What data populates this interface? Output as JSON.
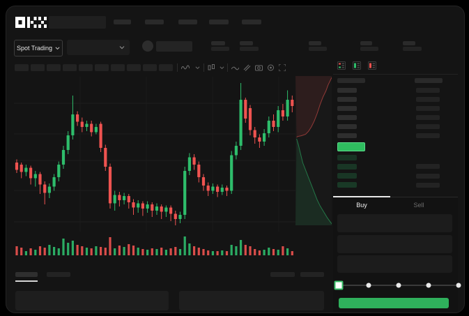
{
  "brand": {
    "logo_text": "OKX"
  },
  "market_bar": {
    "pair_selector_label": "Spot Trading"
  },
  "trade_form": {
    "buy_tab": "Buy",
    "sell_tab": "Sell",
    "slider_stops": [
      0,
      25,
      50,
      75,
      100
    ],
    "slider_value": 0
  },
  "colors": {
    "up": "#2ebd6b",
    "down": "#ef5350",
    "button_green": "#2fb05c",
    "price_green": "#2fbd5f",
    "grid": "#1e1e1e",
    "grid_vertical": "#1a1a1a"
  },
  "chart_data": {
    "type": "candlestick",
    "note_units": "relative price units, ohlc = [open, high, low, close]",
    "candles": [
      [
        126,
        129,
        116,
        119
      ],
      [
        124,
        126,
        111,
        117
      ],
      [
        117,
        124,
        113,
        121
      ],
      [
        121,
        123,
        105,
        111
      ],
      [
        111,
        118,
        103,
        115
      ],
      [
        115,
        117,
        96,
        105
      ],
      [
        105,
        108,
        86,
        97
      ],
      [
        97,
        106,
        92,
        103
      ],
      [
        103,
        115,
        99,
        112
      ],
      [
        112,
        127,
        108,
        124
      ],
      [
        124,
        142,
        120,
        138
      ],
      [
        138,
        156,
        134,
        152
      ],
      [
        152,
        190,
        148,
        172
      ],
      [
        172,
        175,
        161,
        165
      ],
      [
        165,
        169,
        155,
        160
      ],
      [
        160,
        166,
        156,
        163
      ],
      [
        163,
        166,
        151,
        155
      ],
      [
        155,
        163,
        153,
        160
      ],
      [
        163,
        165,
        136,
        140
      ],
      [
        140,
        143,
        118,
        122
      ],
      [
        122,
        125,
        82,
        87
      ],
      [
        87,
        99,
        80,
        95
      ],
      [
        95,
        98,
        84,
        90
      ],
      [
        90,
        97,
        86,
        94
      ],
      [
        94,
        96,
        82,
        88
      ],
      [
        88,
        91,
        76,
        83
      ],
      [
        83,
        90,
        78,
        87
      ],
      [
        87,
        89,
        75,
        82
      ],
      [
        82,
        89,
        78,
        86
      ],
      [
        86,
        88,
        74,
        80
      ],
      [
        80,
        87,
        76,
        84
      ],
      [
        84,
        86,
        72,
        79
      ],
      [
        79,
        85,
        74,
        83
      ],
      [
        83,
        85,
        70,
        77
      ],
      [
        77,
        80,
        66,
        72
      ],
      [
        72,
        79,
        68,
        76
      ],
      [
        76,
        122,
        72,
        118
      ],
      [
        118,
        135,
        114,
        131
      ],
      [
        131,
        134,
        119,
        124
      ],
      [
        124,
        127,
        107,
        112
      ],
      [
        112,
        115,
        99,
        104
      ],
      [
        104,
        107,
        94,
        99
      ],
      [
        99,
        106,
        96,
        103
      ],
      [
        103,
        105,
        93,
        98
      ],
      [
        98,
        105,
        95,
        102
      ],
      [
        102,
        104,
        94,
        99
      ],
      [
        99,
        137,
        96,
        133
      ],
      [
        133,
        146,
        129,
        142
      ],
      [
        142,
        202,
        138,
        186
      ],
      [
        186,
        188,
        164,
        168
      ],
      [
        178,
        181,
        152,
        157
      ],
      [
        157,
        160,
        144,
        150
      ],
      [
        150,
        153,
        140,
        146
      ],
      [
        146,
        158,
        142,
        154
      ],
      [
        154,
        170,
        150,
        166
      ],
      [
        166,
        172,
        156,
        160
      ],
      [
        160,
        180,
        155,
        176
      ],
      [
        176,
        182,
        166,
        170
      ],
      [
        170,
        195,
        166,
        186
      ],
      [
        186,
        190,
        174,
        180
      ]
    ],
    "volumes": [
      13,
      11,
      6,
      10,
      8,
      13,
      11,
      15,
      12,
      10,
      24,
      18,
      21,
      15,
      13,
      11,
      10,
      13,
      12,
      11,
      26,
      10,
      14,
      12,
      16,
      14,
      11,
      9,
      8,
      10,
      9,
      11,
      8,
      10,
      12,
      9,
      27,
      17,
      13,
      11,
      9,
      7,
      6,
      6,
      7,
      6,
      15,
      13,
      22,
      15,
      13,
      9,
      7,
      8,
      11,
      9,
      8,
      13,
      10,
      6
    ],
    "price_range": [
      60,
      208
    ],
    "grid_h": [
      38,
      82,
      120,
      163,
      208
    ],
    "grid_v": [
      95,
      190,
      285,
      380
    ],
    "depth": {
      "asks": [
        [
          0.03,
          0.41
        ],
        [
          0.06,
          0.405
        ],
        [
          0.16,
          0.4
        ],
        [
          0.28,
          0.39
        ],
        [
          0.36,
          0.37
        ],
        [
          0.44,
          0.34
        ],
        [
          0.52,
          0.3
        ],
        [
          0.6,
          0.25
        ],
        [
          0.68,
          0.19
        ],
        [
          0.76,
          0.14
        ],
        [
          0.84,
          0.1
        ],
        [
          0.9,
          0.06
        ],
        [
          0.96,
          0.03
        ],
        [
          1,
          0.01
        ]
      ],
      "bids": [
        [
          0.03,
          0.42
        ],
        [
          0.08,
          0.46
        ],
        [
          0.14,
          0.52
        ],
        [
          0.2,
          0.58
        ],
        [
          0.28,
          0.63
        ],
        [
          0.36,
          0.68
        ],
        [
          0.44,
          0.73
        ],
        [
          0.52,
          0.78
        ],
        [
          0.6,
          0.83
        ],
        [
          0.68,
          0.87
        ],
        [
          0.78,
          0.91
        ],
        [
          0.88,
          0.95
        ],
        [
          1,
          0.99
        ]
      ]
    }
  }
}
